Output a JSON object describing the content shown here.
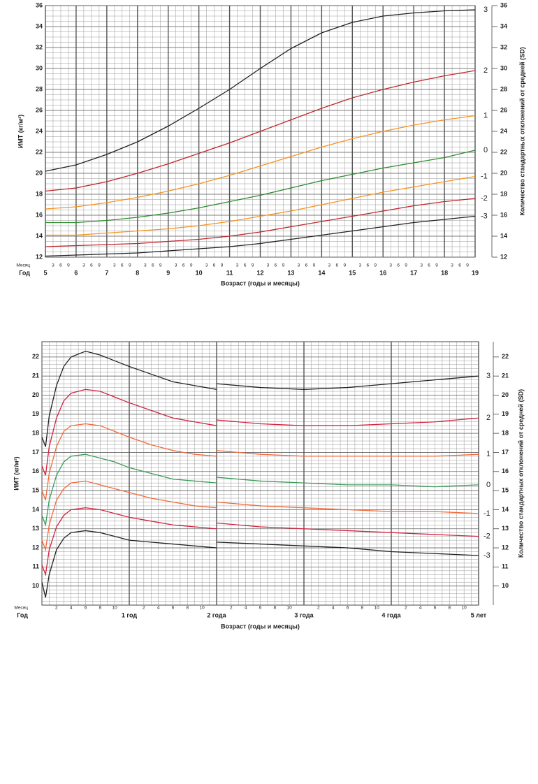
{
  "chart_data": [
    {
      "type": "line",
      "ylabel": "ИМТ (кг/м²)",
      "y2label": "Количество стандартных отклонений от средней (SD)",
      "xlabel": "Возраст (годы и месяцы)",
      "month_row_label": "Месяц",
      "year_row_label": "Год",
      "x": [
        5,
        6,
        7,
        8,
        9,
        10,
        11,
        12,
        13,
        14,
        15,
        16,
        17,
        18,
        19
      ],
      "xlim": [
        5,
        19
      ],
      "ylim": [
        12,
        36
      ],
      "y2lim": [
        12,
        36
      ],
      "xticks": [
        5,
        6,
        7,
        8,
        9,
        10,
        11,
        12,
        13,
        14,
        15,
        16,
        17,
        18,
        19
      ],
      "month_ticks": [
        {
          "value": 5.25,
          "label": "3"
        },
        {
          "value": 5.5,
          "label": "6"
        },
        {
          "value": 5.75,
          "label": "9"
        },
        {
          "value": 6.25,
          "label": "3"
        },
        {
          "value": 6.5,
          "label": "6"
        },
        {
          "value": 6.75,
          "label": "9"
        },
        {
          "value": 7.25,
          "label": "3"
        },
        {
          "value": 7.5,
          "label": "6"
        },
        {
          "value": 7.75,
          "label": "9"
        },
        {
          "value": 8.25,
          "label": "3"
        },
        {
          "value": 8.5,
          "label": "6"
        },
        {
          "value": 8.75,
          "label": "9"
        },
        {
          "value": 9.25,
          "label": "3"
        },
        {
          "value": 9.5,
          "label": "6"
        },
        {
          "value": 9.75,
          "label": "9"
        },
        {
          "value": 10.25,
          "label": "3"
        },
        {
          "value": 10.5,
          "label": "6"
        },
        {
          "value": 10.75,
          "label": "9"
        },
        {
          "value": 11.25,
          "label": "3"
        },
        {
          "value": 11.5,
          "label": "6"
        },
        {
          "value": 11.75,
          "label": "9"
        },
        {
          "value": 12.25,
          "label": "3"
        },
        {
          "value": 12.5,
          "label": "6"
        },
        {
          "value": 12.75,
          "label": "9"
        },
        {
          "value": 13.25,
          "label": "3"
        },
        {
          "value": 13.5,
          "label": "6"
        },
        {
          "value": 13.75,
          "label": "9"
        },
        {
          "value": 14.25,
          "label": "3"
        },
        {
          "value": 14.5,
          "label": "6"
        },
        {
          "value": 14.75,
          "label": "9"
        },
        {
          "value": 15.25,
          "label": "3"
        },
        {
          "value": 15.5,
          "label": "6"
        },
        {
          "value": 15.75,
          "label": "9"
        },
        {
          "value": 16.25,
          "label": "3"
        },
        {
          "value": 16.5,
          "label": "6"
        },
        {
          "value": 16.75,
          "label": "9"
        },
        {
          "value": 17.25,
          "label": "3"
        },
        {
          "value": 17.5,
          "label": "6"
        },
        {
          "value": 17.75,
          "label": "9"
        },
        {
          "value": 18.25,
          "label": "3"
        },
        {
          "value": 18.5,
          "label": "6"
        },
        {
          "value": 18.75,
          "label": "9"
        }
      ],
      "yticks": [
        12,
        14,
        16,
        18,
        20,
        22,
        24,
        26,
        28,
        30,
        32,
        34,
        36
      ],
      "y2ticks": [
        12,
        14,
        16,
        18,
        20,
        22,
        24,
        26,
        28,
        30,
        32,
        34,
        36
      ],
      "grid": true,
      "series": [
        {
          "name": "3",
          "color": "#222222",
          "values": [
            20.2,
            20.8,
            21.8,
            23.0,
            24.5,
            26.2,
            28.0,
            30.0,
            31.9,
            33.4,
            34.4,
            35.0,
            35.3,
            35.5,
            35.6
          ]
        },
        {
          "name": "2",
          "color": "#c0272d",
          "values": [
            18.3,
            18.6,
            19.2,
            20.0,
            20.9,
            21.9,
            22.9,
            24.0,
            25.1,
            26.2,
            27.2,
            28.0,
            28.7,
            29.3,
            29.8
          ]
        },
        {
          "name": "1",
          "color": "#f7941d",
          "values": [
            16.6,
            16.8,
            17.2,
            17.7,
            18.3,
            19.0,
            19.8,
            20.7,
            21.6,
            22.5,
            23.3,
            24.0,
            24.6,
            25.1,
            25.5
          ]
        },
        {
          "name": "0",
          "color": "#2e8b2e",
          "values": [
            15.3,
            15.3,
            15.5,
            15.8,
            16.2,
            16.7,
            17.3,
            17.9,
            18.6,
            19.3,
            19.9,
            20.5,
            21.0,
            21.5,
            22.2
          ]
        },
        {
          "name": "-1",
          "color": "#f7941d",
          "values": [
            14.1,
            14.1,
            14.3,
            14.5,
            14.7,
            15.0,
            15.4,
            15.9,
            16.4,
            17.0,
            17.6,
            18.2,
            18.7,
            19.2,
            19.7
          ]
        },
        {
          "name": "-2",
          "color": "#c0272d",
          "values": [
            13.0,
            13.1,
            13.2,
            13.3,
            13.5,
            13.7,
            14.0,
            14.4,
            14.9,
            15.4,
            15.9,
            16.4,
            16.9,
            17.3,
            17.6
          ]
        },
        {
          "name": "-3",
          "color": "#222222",
          "values": [
            12.1,
            12.2,
            12.3,
            12.4,
            12.6,
            12.8,
            13.0,
            13.3,
            13.7,
            14.1,
            14.5,
            14.9,
            15.3,
            15.6,
            15.9
          ]
        }
      ]
    },
    {
      "type": "line",
      "ylabel": "ИМТ (кг/м²)",
      "y2label": "Количество стандартных отклонений от средней (SD)",
      "xlabel": "Возраст (годы и месяцы)",
      "month_row_label": "Месяц",
      "year_row_label": "Год",
      "x": [
        0,
        0.5,
        1,
        2,
        3,
        4,
        6,
        8,
        10,
        12,
        15,
        18,
        21,
        24,
        24,
        24,
        30,
        36,
        42,
        48,
        54,
        60
      ],
      "xlim": [
        0,
        60
      ],
      "ylim": [
        9,
        22.8
      ],
      "y2lim": [
        9,
        22.8
      ],
      "xticks": [
        {
          "value": 12,
          "label": "1 год"
        },
        {
          "value": 24,
          "label": "2 года"
        },
        {
          "value": 36,
          "label": "3 года"
        },
        {
          "value": 48,
          "label": "4 года"
        },
        {
          "value": 60,
          "label": "5 лет"
        }
      ],
      "month_ticks": [
        {
          "value": 2,
          "label": "2"
        },
        {
          "value": 4,
          "label": "4"
        },
        {
          "value": 6,
          "label": "6"
        },
        {
          "value": 8,
          "label": "8"
        },
        {
          "value": 10,
          "label": "10"
        },
        {
          "value": 14,
          "label": "2"
        },
        {
          "value": 16,
          "label": "4"
        },
        {
          "value": 18,
          "label": "6"
        },
        {
          "value": 20,
          "label": "8"
        },
        {
          "value": 22,
          "label": "10"
        },
        {
          "value": 26,
          "label": "2"
        },
        {
          "value": 28,
          "label": "4"
        },
        {
          "value": 30,
          "label": "6"
        },
        {
          "value": 32,
          "label": "8"
        },
        {
          "value": 34,
          "label": "10"
        },
        {
          "value": 38,
          "label": "2"
        },
        {
          "value": 40,
          "label": "4"
        },
        {
          "value": 42,
          "label": "6"
        },
        {
          "value": 44,
          "label": "8"
        },
        {
          "value": 46,
          "label": "10"
        },
        {
          "value": 50,
          "label": "2"
        },
        {
          "value": 52,
          "label": "4"
        },
        {
          "value": 54,
          "label": "6"
        },
        {
          "value": 56,
          "label": "8"
        },
        {
          "value": 58,
          "label": "10"
        }
      ],
      "yticks": [
        10,
        11,
        12,
        13,
        14,
        15,
        16,
        17,
        18,
        19,
        20,
        21,
        22
      ],
      "y2ticks": [
        10,
        11,
        12,
        13,
        14,
        15,
        16,
        17,
        18,
        19,
        20,
        21,
        22
      ],
      "grid": true,
      "series": [
        {
          "name": "3",
          "color": "#222222",
          "values": [
            17.8,
            17.3,
            18.9,
            20.5,
            21.5,
            22.0,
            22.3,
            22.1,
            21.8,
            21.5,
            21.1,
            20.7,
            20.5,
            20.3,
            null,
            20.6,
            20.4,
            20.3,
            20.4,
            20.6,
            20.8,
            21.0
          ]
        },
        {
          "name": "2",
          "color": "#d2233f",
          "values": [
            16.3,
            15.8,
            17.3,
            18.8,
            19.7,
            20.1,
            20.3,
            20.2,
            19.9,
            19.6,
            19.2,
            18.8,
            18.6,
            18.4,
            null,
            18.7,
            18.5,
            18.4,
            18.4,
            18.5,
            18.6,
            18.8
          ]
        },
        {
          "name": "1",
          "color": "#f26b3a",
          "values": [
            15.0,
            14.5,
            15.9,
            17.3,
            18.1,
            18.4,
            18.5,
            18.4,
            18.1,
            17.8,
            17.4,
            17.1,
            16.9,
            16.8,
            null,
            17.1,
            16.9,
            16.8,
            16.8,
            16.8,
            16.8,
            16.9
          ]
        },
        {
          "name": "0",
          "color": "#3a9a5a",
          "values": [
            13.7,
            13.2,
            14.5,
            15.8,
            16.5,
            16.8,
            16.9,
            16.7,
            16.5,
            16.2,
            15.9,
            15.6,
            15.5,
            15.4,
            null,
            15.7,
            15.5,
            15.4,
            15.3,
            15.3,
            15.2,
            15.3
          ]
        },
        {
          "name": "-1",
          "color": "#f26b3a",
          "values": [
            12.4,
            11.9,
            13.2,
            14.5,
            15.1,
            15.4,
            15.5,
            15.3,
            15.1,
            14.9,
            14.6,
            14.4,
            14.2,
            14.1,
            null,
            14.4,
            14.2,
            14.1,
            14.0,
            13.9,
            13.9,
            13.8
          ]
        },
        {
          "name": "-2",
          "color": "#d2233f",
          "values": [
            11.1,
            10.6,
            11.9,
            13.1,
            13.7,
            14.0,
            14.1,
            14.0,
            13.8,
            13.6,
            13.4,
            13.2,
            13.1,
            13.0,
            null,
            13.3,
            13.1,
            13.0,
            12.9,
            12.8,
            12.7,
            12.6
          ]
        },
        {
          "name": "-3",
          "color": "#222222",
          "values": [
            10.2,
            9.4,
            10.6,
            11.9,
            12.5,
            12.8,
            12.9,
            12.8,
            12.6,
            12.4,
            12.3,
            12.2,
            12.1,
            12.0,
            null,
            12.3,
            12.2,
            12.1,
            12.0,
            11.8,
            11.7,
            11.6
          ]
        }
      ]
    }
  ]
}
